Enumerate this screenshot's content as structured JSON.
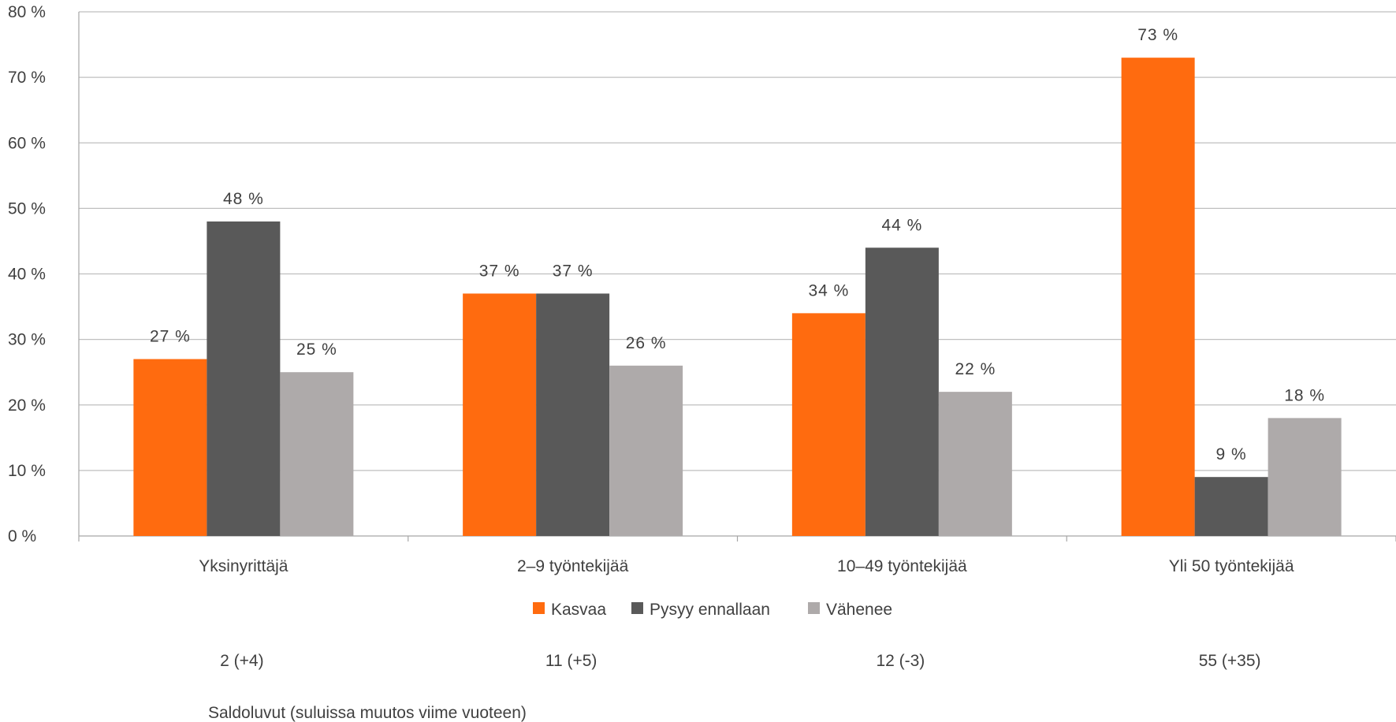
{
  "chart_data": {
    "type": "bar",
    "categories": [
      "Yksinyrittäjä",
      "2–9 työntekijää",
      "10–49 työntekijää",
      "Yli 50 työntekijää"
    ],
    "series": [
      {
        "name": "Kasvaa",
        "color": "#FF6B0F",
        "values": [
          27,
          37,
          34,
          73
        ],
        "labels": [
          "27 %",
          "37 %",
          "34 %",
          "73 %"
        ]
      },
      {
        "name": "Pysyy ennallaan",
        "color": "#595959",
        "values": [
          48,
          37,
          44,
          9
        ],
        "labels": [
          "48 %",
          "37 %",
          "44 %",
          "9 %"
        ]
      },
      {
        "name": "Vähenee",
        "color": "#AEAAAA",
        "values": [
          25,
          26,
          22,
          18
        ],
        "labels": [
          "25 %",
          "26 %",
          "22 %",
          "18 %"
        ]
      }
    ],
    "ylim": [
      0,
      80
    ],
    "yticks": [
      0,
      10,
      20,
      30,
      40,
      50,
      60,
      70,
      80
    ],
    "ytick_labels": [
      "0 %",
      "10 %",
      "20 %",
      "30 %",
      "40 %",
      "50 %",
      "60 %",
      "70 %",
      "80 %"
    ],
    "grid": true,
    "legend": "bottom",
    "saldo_values": [
      "2 (+4)",
      "11 (+5)",
      "12 (-3)",
      "55 (+35)"
    ],
    "saldo_caption": "Saldoluvut (suluissa muutos viime vuoteen)"
  }
}
